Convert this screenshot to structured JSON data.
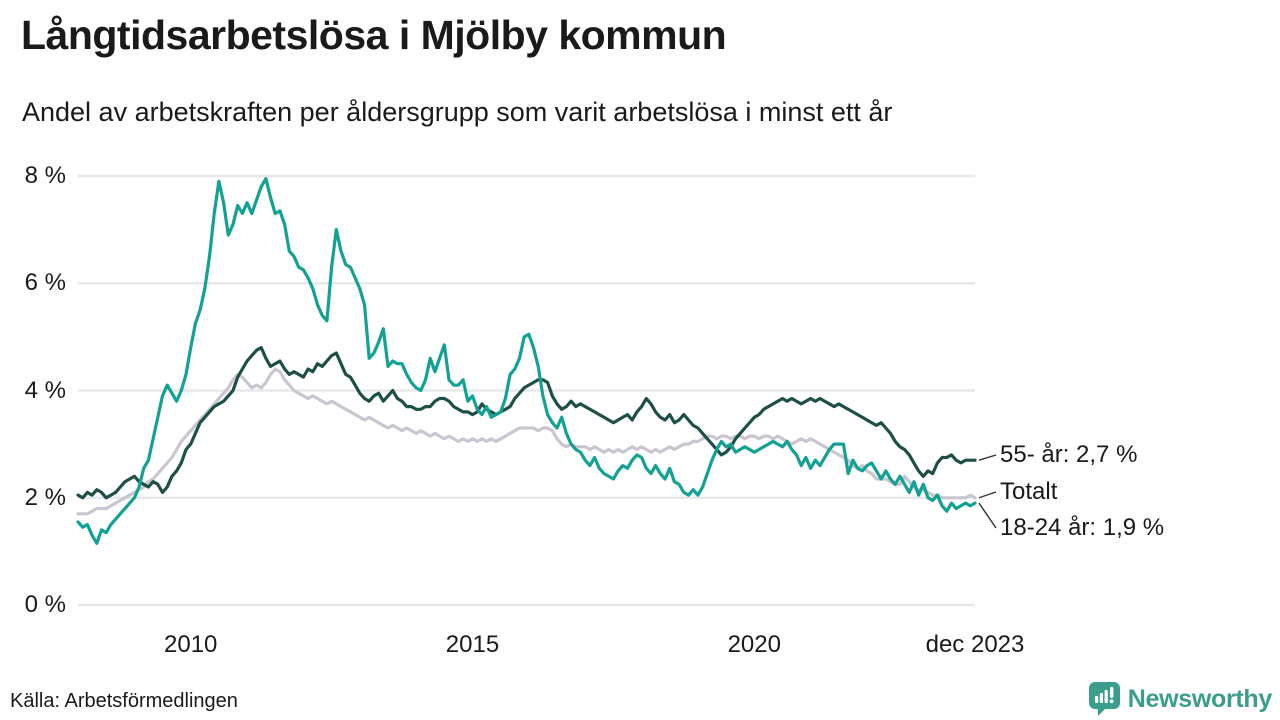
{
  "header": {
    "title": "Långtidsarbetslösa i Mjölby kommun",
    "subtitle": "Andel av arbetskraften per åldersgrupp som varit arbetslösa i minst ett år"
  },
  "footer": {
    "source": "Källa: Arbetsförmedlingen",
    "brand": "Newsworthy"
  },
  "colors": {
    "youth_line": "#12a192",
    "senior_line": "#1e4f46",
    "total_line": "#c9c5d1",
    "gridline": "#e8e7ec",
    "text": "#1a1a1a",
    "logo": "#3b9e8c",
    "connector": "#333333"
  },
  "chart_data": {
    "type": "line",
    "title": "Långtidsarbetslösa i Mjölby kommun",
    "subtitle": "Andel av arbetskraften per åldersgrupp som varit arbetslösa i minst ett år",
    "x_start": "2008-01",
    "x_end": "2023-12",
    "x_unit": "month",
    "ylim": [
      0,
      8
    ],
    "grid": true,
    "legend_position": "end-of-line-labels",
    "y_ticks": [
      {
        "label": "8 %",
        "value": 8
      },
      {
        "label": "6 %",
        "value": 6
      },
      {
        "label": "4 %",
        "value": 4
      },
      {
        "label": "2 %",
        "value": 2
      },
      {
        "label": "0 %",
        "value": 0
      }
    ],
    "x_ticks": [
      {
        "label": "2010",
        "month": 24
      },
      {
        "label": "2015",
        "month": 84
      },
      {
        "label": "2020",
        "month": 144
      },
      {
        "label": "dec 2023",
        "month": 191
      }
    ],
    "series": [
      {
        "name": "Totalt",
        "color": "#c9c5d1",
        "end_label": "Totalt",
        "end_value": 2.0,
        "values": [
          1.7,
          1.7,
          1.7,
          1.75,
          1.8,
          1.8,
          1.8,
          1.85,
          1.9,
          1.95,
          2.0,
          2.05,
          2.1,
          2.15,
          2.2,
          2.3,
          2.35,
          2.45,
          2.55,
          2.65,
          2.75,
          2.9,
          3.05,
          3.15,
          3.25,
          3.35,
          3.45,
          3.55,
          3.65,
          3.75,
          3.85,
          3.95,
          4.05,
          4.2,
          4.3,
          4.25,
          4.15,
          4.05,
          4.1,
          4.05,
          4.15,
          4.3,
          4.4,
          4.35,
          4.2,
          4.1,
          4.0,
          3.95,
          3.9,
          3.85,
          3.9,
          3.85,
          3.8,
          3.75,
          3.8,
          3.75,
          3.7,
          3.65,
          3.6,
          3.55,
          3.5,
          3.45,
          3.5,
          3.45,
          3.4,
          3.35,
          3.3,
          3.35,
          3.3,
          3.25,
          3.3,
          3.25,
          3.2,
          3.25,
          3.2,
          3.15,
          3.2,
          3.15,
          3.1,
          3.15,
          3.1,
          3.05,
          3.1,
          3.05,
          3.1,
          3.05,
          3.1,
          3.05,
          3.1,
          3.05,
          3.1,
          3.15,
          3.2,
          3.25,
          3.3,
          3.3,
          3.3,
          3.3,
          3.25,
          3.3,
          3.3,
          3.25,
          3.1,
          3.0,
          2.95,
          3.0,
          2.95,
          2.95,
          2.95,
          2.9,
          2.95,
          2.9,
          2.85,
          2.9,
          2.85,
          2.9,
          2.85,
          2.9,
          2.95,
          2.9,
          2.95,
          2.9,
          2.85,
          2.9,
          2.85,
          2.9,
          2.95,
          2.9,
          2.95,
          3.0,
          3.0,
          3.05,
          3.05,
          3.1,
          3.15,
          3.15,
          3.1,
          3.15,
          3.15,
          3.1,
          3.15,
          3.15,
          3.1,
          3.15,
          3.15,
          3.1,
          3.15,
          3.15,
          3.1,
          3.15,
          3.1,
          3.05,
          3.0,
          3.05,
          3.1,
          3.05,
          3.1,
          3.05,
          3.0,
          2.95,
          2.9,
          2.85,
          2.8,
          2.75,
          2.7,
          2.6,
          2.55,
          2.6,
          2.5,
          2.45,
          2.35,
          2.35,
          2.35,
          2.3,
          2.25,
          2.25,
          2.4,
          2.3,
          2.2,
          2.15,
          2.15,
          2.1,
          2.05,
          2.05,
          2.0,
          2.0,
          2.0,
          2.0,
          2.0,
          2.0,
          2.05,
          2.0
        ]
      },
      {
        "name": "55- år",
        "color": "#1e4f46",
        "end_label": "55- år: 2,7 %",
        "end_value": 2.7,
        "values": [
          2.05,
          2.0,
          2.1,
          2.05,
          2.15,
          2.1,
          2.0,
          2.05,
          2.1,
          2.2,
          2.3,
          2.35,
          2.4,
          2.3,
          2.25,
          2.2,
          2.3,
          2.25,
          2.1,
          2.2,
          2.4,
          2.5,
          2.65,
          2.9,
          3.0,
          3.2,
          3.4,
          3.5,
          3.6,
          3.7,
          3.75,
          3.8,
          3.9,
          4.0,
          4.25,
          4.4,
          4.55,
          4.65,
          4.75,
          4.8,
          4.6,
          4.45,
          4.5,
          4.55,
          4.4,
          4.3,
          4.35,
          4.3,
          4.25,
          4.4,
          4.35,
          4.5,
          4.45,
          4.55,
          4.65,
          4.7,
          4.5,
          4.3,
          4.25,
          4.1,
          3.95,
          3.85,
          3.8,
          3.9,
          3.95,
          3.8,
          3.9,
          4.0,
          3.85,
          3.8,
          3.7,
          3.7,
          3.65,
          3.65,
          3.7,
          3.7,
          3.8,
          3.85,
          3.85,
          3.8,
          3.7,
          3.65,
          3.6,
          3.6,
          3.55,
          3.6,
          3.75,
          3.65,
          3.6,
          3.55,
          3.6,
          3.65,
          3.7,
          3.85,
          3.95,
          4.05,
          4.1,
          4.15,
          4.2,
          4.2,
          4.15,
          3.9,
          3.75,
          3.65,
          3.7,
          3.8,
          3.7,
          3.75,
          3.7,
          3.65,
          3.6,
          3.55,
          3.5,
          3.45,
          3.4,
          3.45,
          3.5,
          3.55,
          3.45,
          3.6,
          3.7,
          3.85,
          3.75,
          3.6,
          3.5,
          3.45,
          3.55,
          3.4,
          3.45,
          3.55,
          3.45,
          3.35,
          3.3,
          3.2,
          3.1,
          3.0,
          2.9,
          2.8,
          2.85,
          2.95,
          3.1,
          3.2,
          3.3,
          3.4,
          3.5,
          3.55,
          3.65,
          3.7,
          3.75,
          3.8,
          3.85,
          3.8,
          3.85,
          3.8,
          3.75,
          3.8,
          3.85,
          3.8,
          3.85,
          3.8,
          3.75,
          3.7,
          3.75,
          3.7,
          3.65,
          3.6,
          3.55,
          3.5,
          3.45,
          3.4,
          3.35,
          3.4,
          3.3,
          3.2,
          3.05,
          2.95,
          2.9,
          2.8,
          2.65,
          2.5,
          2.4,
          2.5,
          2.45,
          2.65,
          2.75,
          2.75,
          2.8,
          2.7,
          2.65,
          2.7,
          2.7,
          2.7
        ]
      },
      {
        "name": "18-24 år",
        "color": "#12a192",
        "end_label": "18-24 år: 1,9 %",
        "end_value": 1.9,
        "values": [
          1.55,
          1.45,
          1.5,
          1.3,
          1.15,
          1.4,
          1.35,
          1.5,
          1.6,
          1.7,
          1.8,
          1.9,
          2.0,
          2.2,
          2.55,
          2.7,
          3.1,
          3.5,
          3.9,
          4.1,
          3.95,
          3.8,
          4.0,
          4.3,
          4.8,
          5.25,
          5.5,
          5.9,
          6.5,
          7.3,
          7.9,
          7.5,
          6.9,
          7.1,
          7.45,
          7.3,
          7.5,
          7.3,
          7.55,
          7.8,
          7.95,
          7.6,
          7.3,
          7.35,
          7.1,
          6.6,
          6.5,
          6.3,
          6.25,
          6.1,
          5.9,
          5.6,
          5.4,
          5.3,
          6.3,
          7.0,
          6.6,
          6.35,
          6.3,
          6.1,
          5.9,
          5.6,
          4.6,
          4.7,
          4.9,
          5.15,
          4.45,
          4.55,
          4.5,
          4.5,
          4.3,
          4.15,
          4.05,
          4.0,
          4.2,
          4.6,
          4.35,
          4.6,
          4.85,
          4.2,
          4.1,
          4.1,
          4.2,
          3.8,
          3.9,
          3.65,
          3.55,
          3.7,
          3.5,
          3.55,
          3.6,
          3.85,
          4.3,
          4.4,
          4.6,
          5.0,
          5.05,
          4.8,
          4.45,
          3.9,
          3.55,
          3.4,
          3.3,
          3.5,
          3.2,
          3.0,
          2.9,
          2.85,
          2.7,
          2.6,
          2.75,
          2.55,
          2.45,
          2.4,
          2.35,
          2.5,
          2.6,
          2.55,
          2.7,
          2.8,
          2.75,
          2.55,
          2.45,
          2.6,
          2.45,
          2.35,
          2.55,
          2.3,
          2.25,
          2.1,
          2.05,
          2.15,
          2.05,
          2.2,
          2.45,
          2.7,
          2.9,
          3.05,
          2.95,
          3.0,
          2.85,
          2.9,
          2.95,
          2.9,
          2.85,
          2.9,
          2.95,
          3.0,
          3.05,
          3.0,
          2.95,
          3.05,
          2.9,
          2.8,
          2.6,
          2.75,
          2.55,
          2.7,
          2.6,
          2.75,
          2.9,
          3.0,
          3.0,
          3.0,
          2.45,
          2.7,
          2.55,
          2.5,
          2.6,
          2.65,
          2.5,
          2.35,
          2.5,
          2.35,
          2.25,
          2.4,
          2.25,
          2.1,
          2.3,
          2.05,
          2.25,
          2.0,
          1.95,
          2.05,
          1.85,
          1.75,
          1.9,
          1.8,
          1.85,
          1.9,
          1.85,
          1.9
        ]
      }
    ]
  }
}
